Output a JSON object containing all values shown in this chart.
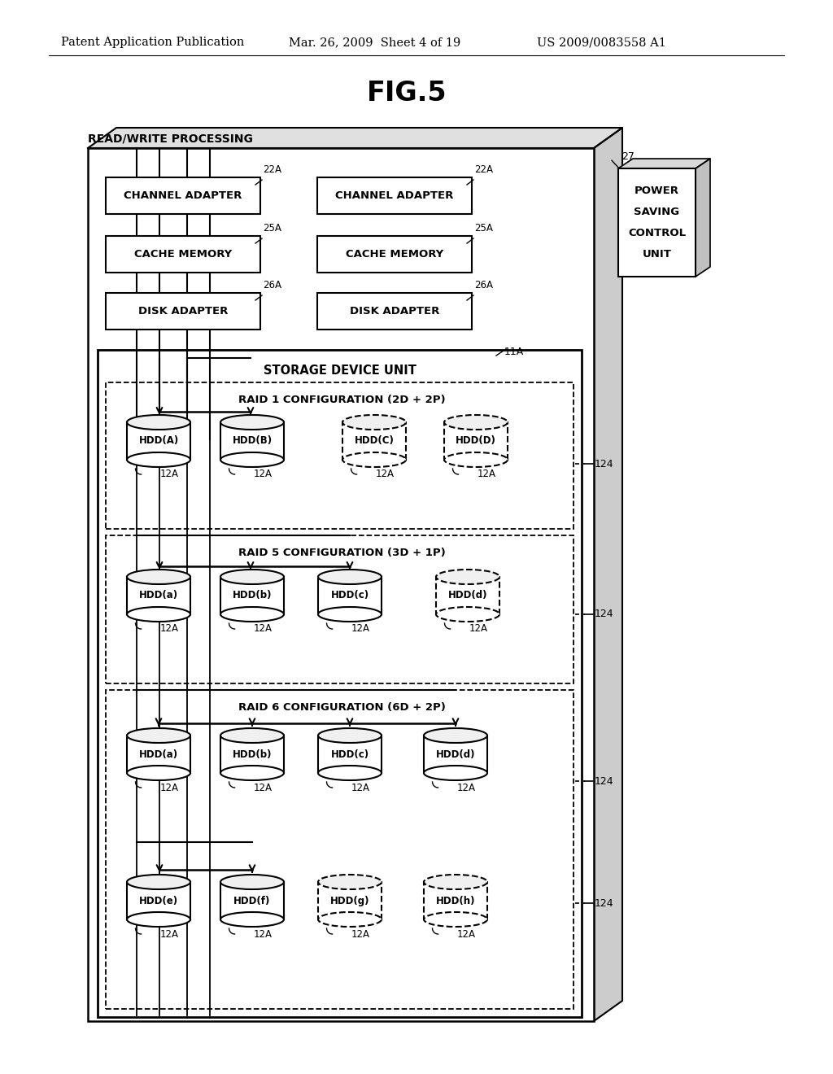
{
  "title": "FIG.5",
  "header_left": "Patent Application Publication",
  "header_mid": "Mar. 26, 2009  Sheet 4 of 19",
  "header_right": "US 2009/0083558 A1",
  "bg_color": "#ffffff",
  "label_read_write": "READ/WRITE PROCESSING",
  "label_storage_unit": "STORAGE DEVICE UNIT",
  "label_11A": "11A",
  "label_27": "27",
  "label_power_saving": [
    "POWER",
    "SAVING",
    "CONTROL",
    "UNIT"
  ],
  "channel_adapters": [
    "CHANNEL ADAPTER",
    "CHANNEL ADAPTER"
  ],
  "ca_labels": [
    "22A",
    "22A"
  ],
  "cache_memories": [
    "CACHE MEMORY",
    "CACHE MEMORY"
  ],
  "cm_labels": [
    "25A",
    "25A"
  ],
  "disk_adapters": [
    "DISK ADAPTER",
    "DISK ADAPTER"
  ],
  "da_labels": [
    "26A",
    "26A"
  ],
  "raid1_label": "RAID 1 CONFIGURATION (2D + 2P)",
  "raid1_hdds": [
    "HDD(A)",
    "HDD(B)",
    "HDD(C)",
    "HDD(D)"
  ],
  "raid1_hdd_solid": [
    true,
    true,
    false,
    false
  ],
  "raid5_label": "RAID 5 CONFIGURATION (3D + 1P)",
  "raid5_hdds": [
    "HDD(a)",
    "HDD(b)",
    "HDD(c)",
    "HDD(d)"
  ],
  "raid5_hdd_solid": [
    true,
    true,
    true,
    false
  ],
  "raid6_label": "RAID 6 CONFIGURATION (6D + 2P)",
  "raid6_hdds_row1": [
    "HDD(a)",
    "HDD(b)",
    "HDD(c)",
    "HDD(d)"
  ],
  "raid6_hdds_row1_solid": [
    true,
    true,
    true,
    true
  ],
  "raid6_hdds_row2": [
    "HDD(e)",
    "HDD(f)",
    "HDD(g)",
    "HDD(h)"
  ],
  "raid6_hdds_row2_solid": [
    true,
    true,
    false,
    false
  ],
  "hdd_label": "12A",
  "label_124": "124"
}
